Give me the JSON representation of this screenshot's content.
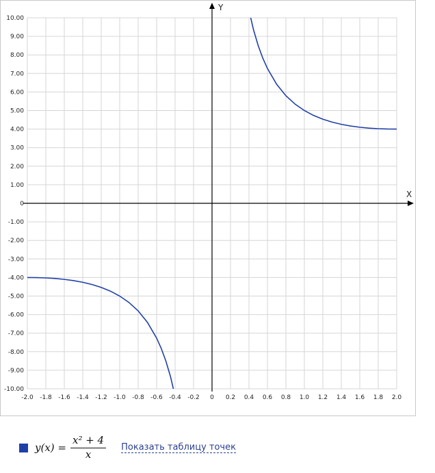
{
  "chart_data": {
    "type": "line",
    "title": "",
    "xlabel": "X",
    "ylabel": "Y",
    "xlim": [
      -2.0,
      2.0
    ],
    "ylim": [
      -10.0,
      10.0
    ],
    "grid": true,
    "x_ticks": [
      "-2.0",
      "-1.8",
      "-1.6",
      "-1.4",
      "-1.2",
      "-1.0",
      "-0.8",
      "-0.6",
      "-0.4",
      "-0.2",
      "0",
      "0.2",
      "0.4",
      "0.6",
      "0.8",
      "1.0",
      "1.2",
      "1.4",
      "1.6",
      "1.8",
      "2.0"
    ],
    "y_ticks": [
      "10.00",
      "9.00",
      "8.00",
      "7.00",
      "6.00",
      "5.00",
      "4.00",
      "3.00",
      "2.00",
      "1.00",
      "0",
      "-1.00",
      "-2.00",
      "-3.00",
      "-4.00",
      "-5.00",
      "-6.00",
      "-7.00",
      "-8.00",
      "-9.00",
      "-10.00"
    ],
    "series": [
      {
        "name": "y(x) = (x^2 + 4)/x",
        "color": "#1f3fa8",
        "segments": [
          {
            "x": [
              -2.0,
              -1.9,
              -1.8,
              -1.7,
              -1.6,
              -1.5,
              -1.4,
              -1.3,
              -1.2,
              -1.1,
              -1.0,
              -0.9,
              -0.8,
              -0.7,
              -0.6,
              -0.55,
              -0.5,
              -0.45,
              -0.4
            ],
            "y": [
              -4.0,
              -4.005,
              -4.022,
              -4.053,
              -4.1,
              -4.167,
              -4.257,
              -4.377,
              -4.533,
              -4.736,
              -5.0,
              -5.344,
              -5.8,
              -6.414,
              -7.267,
              -7.823,
              -8.5,
              -9.339,
              -10.4
            ]
          },
          {
            "x": [
              0.4,
              0.45,
              0.5,
              0.55,
              0.6,
              0.7,
              0.8,
              0.9,
              1.0,
              1.1,
              1.2,
              1.3,
              1.4,
              1.5,
              1.6,
              1.7,
              1.8,
              1.9,
              2.0
            ],
            "y": [
              10.4,
              9.339,
              8.5,
              7.823,
              7.267,
              6.414,
              5.8,
              5.344,
              5.0,
              4.736,
              4.533,
              4.377,
              4.257,
              4.167,
              4.1,
              4.053,
              4.022,
              4.005,
              4.0
            ]
          }
        ]
      }
    ]
  },
  "legend": {
    "swatch_color": "#1f3fa8",
    "lhs": "y(x) =",
    "numerator": "x² + 4",
    "denominator": "x",
    "link_text": "Показать таблицу точек"
  }
}
